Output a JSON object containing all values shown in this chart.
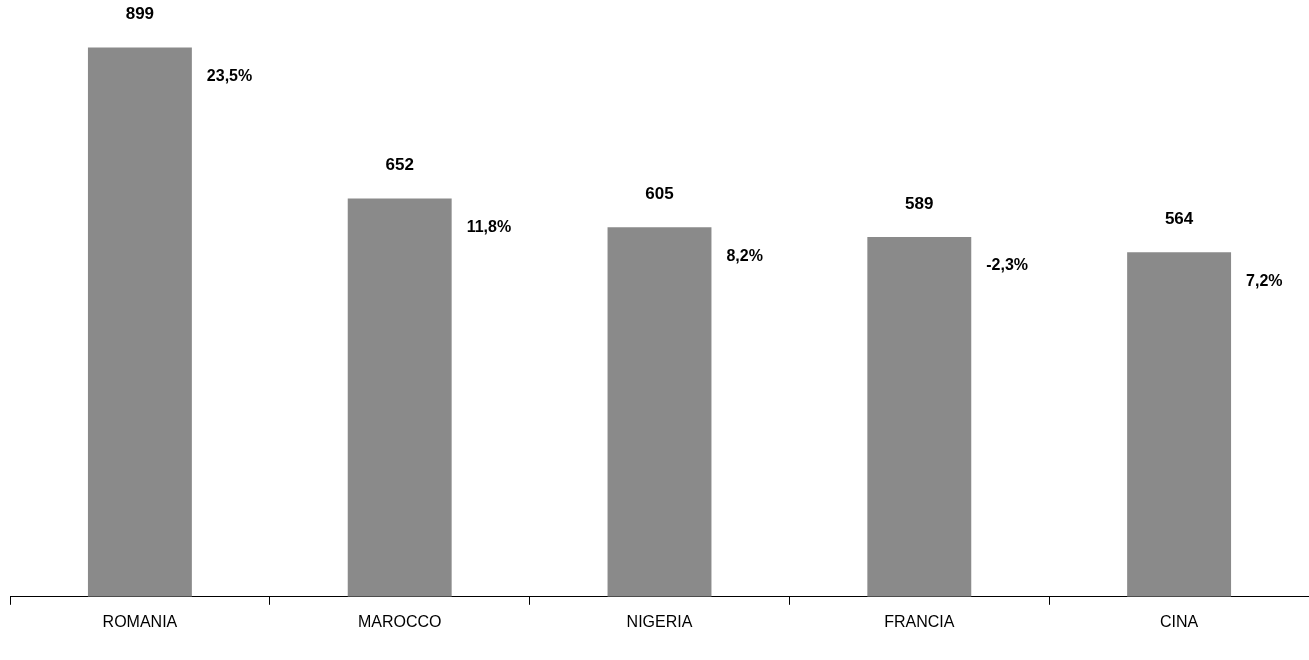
{
  "chart_data": {
    "type": "bar",
    "categories": [
      "ROMANIA",
      "MAROCCO",
      "NIGERIA",
      "FRANCIA",
      "CINA"
    ],
    "values": [
      899,
      652,
      605,
      589,
      564
    ],
    "color": "#8a8a8a",
    "data_labels": true,
    "annotations": [
      "23,5%",
      "11,8%",
      "8,2%",
      "-2,3%",
      "7,2%"
    ],
    "legend": false
  }
}
